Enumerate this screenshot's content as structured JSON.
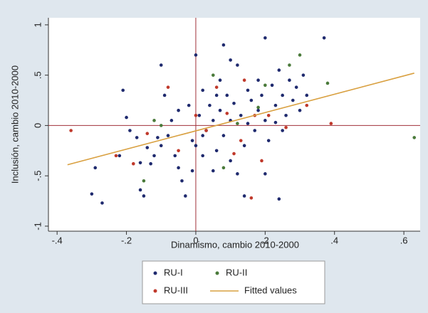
{
  "chart_data": {
    "type": "scatter",
    "xlabel": "Dinamismo, cambio 2010-2000",
    "ylabel": "Inclusión, cambio 2010-2000",
    "xlim": [
      -0.425,
      0.647
    ],
    "ylim": [
      -1.05,
      1.07
    ],
    "xticks": [
      {
        "value": -0.4,
        "label": "-.4"
      },
      {
        "value": -0.2,
        "label": "-.2"
      },
      0,
      {
        "value": 0.2,
        "label": ".2"
      },
      {
        "value": 0.4,
        "label": ".4"
      },
      {
        "value": 0.6,
        "label": ".6"
      }
    ],
    "yticks": [
      -1,
      {
        "value": -0.5,
        "label": "-.5"
      },
      0,
      {
        "value": 0.5,
        "label": ".5"
      },
      1
    ],
    "reference_lines": {
      "x": 0,
      "y": 0,
      "color": "#a0303a"
    },
    "series": [
      {
        "name": "RU-I",
        "color": "#1f2a6e",
        "x": [
          -0.3,
          -0.27,
          -0.29,
          -0.22,
          -0.2,
          -0.19,
          -0.17,
          -0.16,
          -0.16,
          -0.15,
          -0.14,
          -0.13,
          -0.12,
          -0.11,
          -0.1,
          -0.1,
          -0.09,
          -0.08,
          -0.07,
          -0.06,
          -0.05,
          -0.05,
          -0.04,
          -0.03,
          -0.02,
          -0.01,
          0.0,
          0.0,
          0.01,
          0.02,
          0.02,
          0.03,
          0.04,
          0.05,
          0.05,
          0.06,
          0.07,
          0.07,
          0.08,
          0.09,
          0.1,
          0.1,
          0.11,
          0.12,
          0.12,
          0.13,
          0.14,
          0.15,
          0.15,
          0.16,
          0.17,
          0.18,
          0.18,
          0.19,
          0.2,
          0.2,
          0.21,
          0.22,
          0.23,
          0.24,
          0.25,
          0.25,
          0.26,
          0.27,
          0.28,
          0.29,
          0.3,
          0.31,
          0.32,
          0.37,
          0.2,
          0.24,
          0.14,
          -0.21,
          0.08,
          0.1,
          0.23,
          -0.01,
          0.06,
          0.02
        ],
        "values": [
          -0.68,
          -0.77,
          -0.42,
          -0.3,
          0.08,
          -0.05,
          -0.12,
          -0.37,
          -0.64,
          -0.7,
          -0.22,
          -0.38,
          -0.3,
          -0.12,
          -0.2,
          0.6,
          0.3,
          -0.1,
          0.05,
          -0.3,
          -0.42,
          0.15,
          -0.55,
          -0.7,
          0.2,
          -0.15,
          0.7,
          -0.2,
          0.1,
          -0.3,
          0.35,
          -0.05,
          0.2,
          -0.45,
          0.05,
          -0.25,
          0.45,
          0.15,
          -0.1,
          0.3,
          -0.35,
          0.05,
          0.22,
          -0.48,
          0.6,
          0.1,
          -0.2,
          0.35,
          0.02,
          0.25,
          -0.05,
          0.45,
          0.15,
          0.3,
          0.87,
          0.05,
          -0.15,
          0.4,
          0.2,
          0.55,
          -0.05,
          0.3,
          0.1,
          0.45,
          0.25,
          0.38,
          0.15,
          0.5,
          0.3,
          0.87,
          -0.48,
          -0.73,
          -0.7,
          0.35,
          0.8,
          0.65,
          0.03,
          -0.45,
          0.3,
          -0.1
        ]
      },
      {
        "name": "RU-II",
        "color": "#4a7a3a",
        "x": [
          -0.12,
          -0.1,
          0.05,
          0.12,
          0.2,
          0.27,
          0.3,
          0.38,
          0.63,
          0.08,
          -0.15,
          0.18
        ],
        "values": [
          0.05,
          0.0,
          0.5,
          0.02,
          0.4,
          0.6,
          0.7,
          0.42,
          -0.12,
          -0.42,
          -0.55,
          0.18
        ]
      },
      {
        "name": "RU-III",
        "color": "#c0392b",
        "x": [
          -0.36,
          -0.23,
          -0.18,
          -0.14,
          -0.08,
          -0.05,
          0.0,
          0.03,
          0.09,
          0.11,
          0.13,
          0.14,
          0.16,
          0.17,
          0.19,
          0.21,
          0.26,
          0.32,
          0.39,
          0.06
        ],
        "values": [
          -0.05,
          -0.3,
          -0.38,
          -0.08,
          0.38,
          -0.25,
          0.1,
          -0.05,
          0.12,
          -0.28,
          -0.15,
          0.45,
          -0.72,
          0.1,
          -0.35,
          0.1,
          -0.02,
          0.2,
          0.02,
          0.38
        ]
      },
      {
        "name": "Fitted values",
        "color": "#d9a040",
        "style": "line",
        "x": [
          -0.37,
          0.63
        ],
        "values": [
          -0.39,
          0.52
        ]
      }
    ]
  }
}
